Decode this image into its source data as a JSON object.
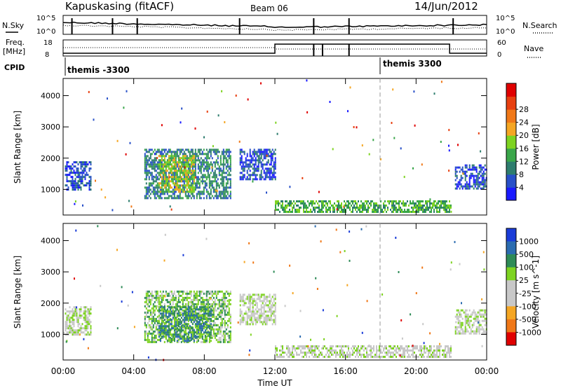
{
  "header": {
    "title": "Kapuskasing (fitACF)",
    "beam": "Beam 06",
    "date": "14/Jun/2012"
  },
  "top_panels": {
    "nsky_label": "N.Sky",
    "nsearch_label": "N.Search",
    "freq_label_1": "Freq.",
    "freq_label_2": "[MHz]",
    "nave_label": "Nave",
    "cpid_label": "CPID",
    "nsky_ticks": [
      "10^5",
      "10^0"
    ],
    "nsearch_ticks": [
      "10^5",
      "10^0"
    ],
    "freq_ticks": [
      "18",
      "8"
    ],
    "nave_ticks": [
      "60",
      "0"
    ],
    "cpid_segments": [
      {
        "label": "themis -3300",
        "start_hour": 0.0
      },
      {
        "label": "themis 3300",
        "start_hour": 18.0
      }
    ]
  },
  "chart_data": [
    {
      "type": "heatmap",
      "name": "power",
      "ylabel": "Slant Range [km]",
      "ylim": [
        180,
        4550
      ],
      "yticks": [
        "1000",
        "2000",
        "3000",
        "4000"
      ],
      "xlim": [
        0,
        24
      ],
      "colorbar_label": "Power [dB]",
      "colorbar_ticks": [
        "4",
        "8",
        "12",
        "16",
        "20",
        "24",
        "28"
      ],
      "colorbar_colors": [
        "#1a1aff",
        "#2850c8",
        "#2e7d6e",
        "#3aa64a",
        "#7ed321",
        "#f5a623",
        "#f07818",
        "#e84010",
        "#e00000"
      ],
      "regions": [
        {
          "h0": 0.1,
          "h1": 1.6,
          "r0": 1000,
          "r1": 1900,
          "level": 1
        },
        {
          "h0": 4.6,
          "h1": 9.5,
          "r0": 700,
          "r1": 2300,
          "level": 2
        },
        {
          "h0": 5.4,
          "h1": 7.4,
          "r0": 900,
          "r1": 2100,
          "level": 4
        },
        {
          "h0": 10.0,
          "h1": 12.0,
          "r0": 1300,
          "r1": 2300,
          "level": 1
        },
        {
          "h0": 12.0,
          "h1": 22.0,
          "r0": 250,
          "r1": 650,
          "level": 3
        },
        {
          "h0": 22.2,
          "h1": 24.0,
          "r0": 1000,
          "r1": 1800,
          "level": 1
        }
      ]
    },
    {
      "type": "heatmap",
      "name": "velocity",
      "ylabel": "Slant Range [km]",
      "ylim": [
        180,
        4550
      ],
      "yticks": [
        "1000",
        "2000",
        "3000",
        "4000"
      ],
      "xlim": [
        0,
        24
      ],
      "xticks": [
        "00:00",
        "04:00",
        "08:00",
        "12:00",
        "16:00",
        "20:00",
        "00:00"
      ],
      "xlabel": "Time UT",
      "colorbar_label": "Velocity [m s^-1]",
      "colorbar_ticks": [
        "1000",
        "500",
        "100",
        "25",
        "-25",
        "-100",
        "-500",
        "-1000"
      ],
      "colorbar_colors": [
        "#1a3cd8",
        "#2b6cb0",
        "#2e8b57",
        "#7ed321",
        "#c8c8c8",
        "#c8c8c8",
        "#f5a623",
        "#f07818",
        "#e00000"
      ],
      "regions": [
        {
          "h0": 0.1,
          "h1": 1.6,
          "r0": 1000,
          "r1": 1900,
          "level": 4
        },
        {
          "h0": 4.6,
          "h1": 9.5,
          "r0": 750,
          "r1": 2400,
          "level": 3
        },
        {
          "h0": 5.4,
          "h1": 8.4,
          "r0": 800,
          "r1": 1900,
          "level": 2
        },
        {
          "h0": 10.0,
          "h1": 12.0,
          "r0": 1300,
          "r1": 2300,
          "level": 4
        },
        {
          "h0": 12.0,
          "h1": 22.0,
          "r0": 250,
          "r1": 650,
          "level": 4
        },
        {
          "h0": 22.2,
          "h1": 24.0,
          "r0": 1000,
          "r1": 1800,
          "level": 4
        }
      ]
    }
  ]
}
